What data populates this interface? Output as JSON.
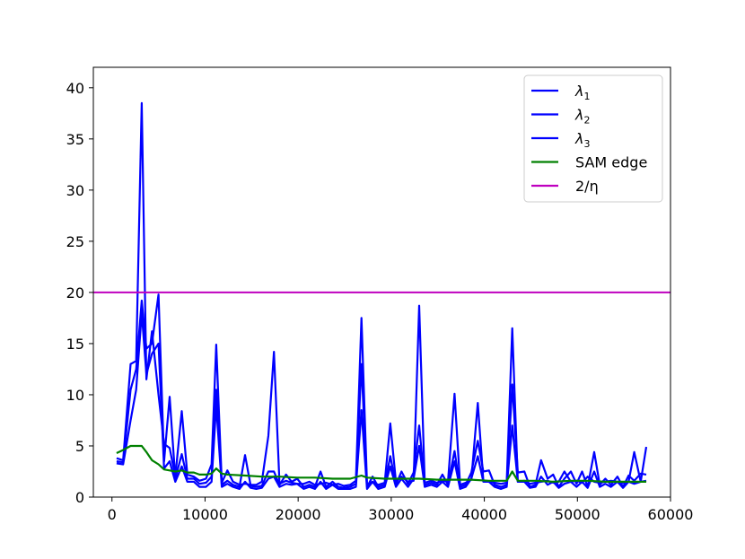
{
  "chart_data": {
    "type": "line",
    "xlim": [
      -2000,
      60000
    ],
    "ylim": [
      0,
      42
    ],
    "xticks": [
      0,
      10000,
      20000,
      30000,
      40000,
      50000,
      60000
    ],
    "yticks": [
      0,
      5,
      10,
      15,
      20,
      25,
      30,
      35,
      40
    ],
    "xtick_labels": [
      "0",
      "10000",
      "20000",
      "30000",
      "40000",
      "50000",
      "60000"
    ],
    "ytick_labels": [
      "0",
      "5",
      "10",
      "15",
      "20",
      "25",
      "30",
      "35",
      "40"
    ],
    "title": "",
    "xlabel": "",
    "ylabel": "",
    "grid": false,
    "legend_position": "top-right",
    "x": [
      500,
      1200,
      2000,
      2600,
      3200,
      3700,
      4300,
      5000,
      5600,
      6200,
      6800,
      7500,
      8100,
      8800,
      9400,
      10100,
      10700,
      11200,
      11800,
      12400,
      13000,
      13700,
      14300,
      14900,
      15500,
      16100,
      16800,
      17400,
      18000,
      18700,
      19300,
      19900,
      20600,
      21200,
      21800,
      22400,
      23000,
      23700,
      24300,
      24900,
      25600,
      26200,
      26800,
      27400,
      28000,
      28600,
      29300,
      29900,
      30500,
      31100,
      31800,
      32400,
      33000,
      33600,
      34300,
      34900,
      35500,
      36100,
      36800,
      37400,
      38000,
      38600,
      39300,
      39900,
      40500,
      41100,
      41800,
      42400,
      43000,
      43600,
      44300,
      44900,
      45500,
      46100,
      46800,
      47400,
      48000,
      48600,
      49300,
      49900,
      50500,
      51100,
      51800,
      52400,
      53000,
      53600,
      54300,
      54900,
      55500,
      56100,
      56800,
      57400
    ],
    "series": [
      {
        "name": "λ1",
        "color": "#0000ff",
        "values": [
          3.8,
          3.6,
          13.0,
          13.3,
          38.5,
          11.5,
          16.2,
          10.0,
          5.2,
          4.8,
          2.0,
          8.4,
          2.2,
          2.0,
          1.6,
          1.8,
          3.2,
          14.9,
          1.4,
          2.6,
          1.5,
          1.2,
          1.3,
          1.2,
          1.2,
          1.5,
          6.0,
          14.2,
          1.3,
          1.6,
          1.4,
          1.3,
          1.3,
          1.5,
          1.2,
          1.3,
          1.4,
          1.2,
          1.3,
          1.1,
          1.2,
          1.6,
          17.5,
          1.2,
          1.5,
          1.2,
          1.4,
          7.2,
          1.5,
          2.0,
          1.5,
          1.6,
          18.7,
          1.4,
          1.6,
          1.4,
          1.6,
          1.5,
          10.1,
          1.2,
          1.4,
          1.7,
          9.2,
          1.6,
          1.5,
          1.4,
          1.3,
          1.4,
          16.5,
          1.5,
          1.6,
          1.3,
          1.4,
          1.5,
          1.6,
          1.4,
          1.5,
          2.5,
          1.5,
          1.6,
          1.4,
          2.0,
          1.5,
          1.4,
          1.5,
          1.6,
          1.5,
          1.4,
          1.5,
          4.4,
          1.5,
          4.9
        ]
      },
      {
        "name": "λ2",
        "color": "#0000ff",
        "values": [
          3.5,
          3.4,
          10.5,
          12.5,
          19.2,
          14.5,
          15.0,
          19.8,
          3.5,
          9.8,
          1.8,
          4.2,
          1.8,
          1.8,
          1.3,
          1.4,
          2.0,
          10.5,
          1.2,
          1.6,
          1.2,
          1.0,
          4.1,
          1.1,
          1.0,
          1.1,
          2.5,
          2.5,
          1.2,
          2.2,
          1.5,
          1.8,
          1.0,
          1.2,
          1.0,
          2.5,
          1.0,
          1.5,
          1.0,
          0.9,
          1.0,
          1.3,
          13.0,
          1.0,
          2.0,
          1.0,
          1.2,
          4.0,
          1.2,
          2.5,
          1.3,
          2.4,
          7.0,
          1.2,
          1.4,
          1.2,
          2.2,
          1.2,
          4.5,
          1.0,
          1.2,
          2.4,
          5.5,
          2.5,
          2.6,
          1.2,
          1.0,
          1.2,
          11.0,
          2.4,
          2.5,
          1.0,
          1.2,
          3.6,
          1.8,
          2.2,
          1.0,
          1.8,
          2.5,
          1.3,
          2.5,
          1.0,
          4.4,
          1.2,
          1.8,
          1.2,
          2.0,
          1.0,
          2.1,
          1.6,
          2.3,
          2.2
        ]
      },
      {
        "name": "λ3",
        "color": "#0000ff",
        "values": [
          3.3,
          3.2,
          7.5,
          10.5,
          18.0,
          12.0,
          14.0,
          15.0,
          2.8,
          3.5,
          1.5,
          3.0,
          1.5,
          1.5,
          1.0,
          1.0,
          1.5,
          9.0,
          1.0,
          1.3,
          1.0,
          0.8,
          1.5,
          0.9,
          0.8,
          0.9,
          1.8,
          2.0,
          1.0,
          1.3,
          1.2,
          1.3,
          0.8,
          1.0,
          0.8,
          1.5,
          0.8,
          1.2,
          0.8,
          0.8,
          0.8,
          1.0,
          8.5,
          0.8,
          1.5,
          0.8,
          1.0,
          3.0,
          1.0,
          1.8,
          1.0,
          1.8,
          5.0,
          1.0,
          1.2,
          1.0,
          1.5,
          1.0,
          3.5,
          0.8,
          1.0,
          1.8,
          4.0,
          1.5,
          1.5,
          1.0,
          0.8,
          1.0,
          7.0,
          1.5,
          1.5,
          0.9,
          1.0,
          2.0,
          1.2,
          1.5,
          0.9,
          1.3,
          1.5,
          1.0,
          1.5,
          0.9,
          2.5,
          1.0,
          1.3,
          1.0,
          1.5,
          0.9,
          1.5,
          1.3,
          1.5,
          1.6
        ]
      },
      {
        "name": "SAM edge",
        "color": "#008000",
        "x": [
          500,
          1200,
          2000,
          2600,
          3200,
          3700,
          4300,
          5000,
          5600,
          6200,
          6800,
          7500,
          8100,
          8800,
          9400,
          10100,
          10700,
          11200,
          11800,
          12400,
          14300,
          16100,
          18000,
          19900,
          21800,
          23700,
          25600,
          26800,
          27400,
          29300,
          31100,
          33000,
          34900,
          36800,
          38600,
          40500,
          42400,
          43000,
          43600,
          45500,
          47400,
          49300,
          51100,
          53000,
          54900,
          56800,
          57400
        ],
        "values": [
          4.3,
          4.6,
          5.0,
          5.0,
          5.0,
          4.4,
          3.6,
          3.2,
          2.7,
          2.6,
          2.5,
          2.6,
          2.4,
          2.4,
          2.2,
          2.2,
          2.3,
          2.8,
          2.3,
          2.2,
          2.1,
          2.0,
          2.0,
          1.9,
          1.9,
          1.8,
          1.8,
          2.1,
          1.9,
          1.8,
          1.8,
          1.8,
          1.7,
          1.7,
          1.7,
          1.6,
          1.6,
          2.5,
          1.6,
          1.6,
          1.5,
          1.6,
          1.6,
          1.5,
          1.5,
          1.5,
          1.5
        ]
      },
      {
        "name": "2/η",
        "color": "#bf00bf",
        "hline": 20
      }
    ],
    "legend": [
      {
        "label": "λ",
        "sub": "1",
        "color": "#0000ff"
      },
      {
        "label": "λ",
        "sub": "2",
        "color": "#0000ff"
      },
      {
        "label": "λ",
        "sub": "3",
        "color": "#0000ff"
      },
      {
        "label": "SAM edge",
        "sub": "",
        "color": "#008000"
      },
      {
        "label": "2/η",
        "sub": "",
        "color": "#bf00bf"
      }
    ]
  }
}
